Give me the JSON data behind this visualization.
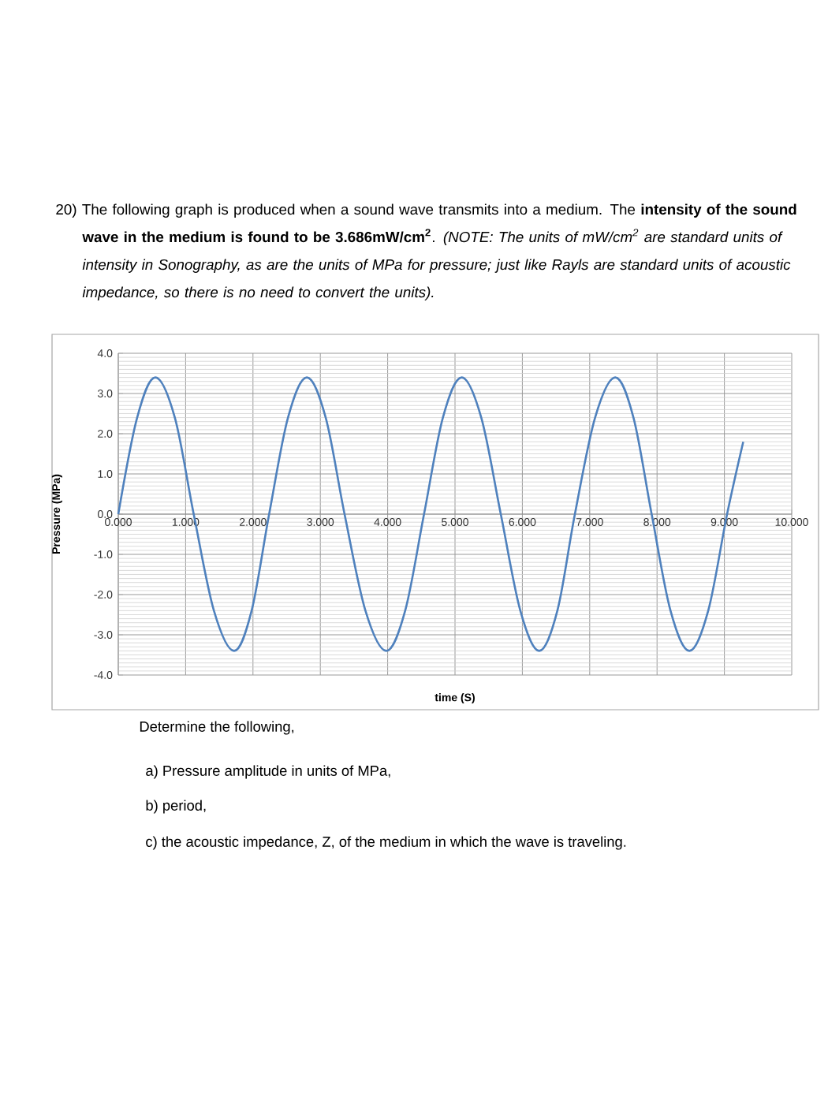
{
  "chart_data": {
    "type": "line",
    "title": "20) The following graph is produced when a sound wave transmits into a medium. The **intensity of the sound wave in the medium is found to be 3.686mW/cm$^{2}$**. *(NOTE: The units of mW/cm$^{2}$ are standard units of intensity in Sonography, as are the units of MPa for pressure; just like Rayls are standard units of acoustic impedance, so there is no need to convert the units).*",
    "xlabel": "time (S)",
    "ylabel": "Pressure (MPa)",
    "annotations": [
      "Determine the following,",
      "a) Pressure amplitude in units of MPa,",
      "b) period,",
      "c) the acoustic impedance, Z, of the medium in which the wave is traveling."
    ],
    "x": [
      0,
      0.28,
      0.55,
      0.84,
      1.12,
      1.42,
      1.72,
      1.98,
      2.24,
      2.52,
      2.8,
      3.08,
      3.36,
      3.67,
      3.98,
      4.26,
      4.54,
      4.82,
      5.1,
      5.39,
      5.68,
      5.97,
      6.25,
      6.52,
      6.78,
      7.08,
      7.38,
      7.65,
      7.92,
      8.2,
      8.48,
      8.76,
      9.04,
      9.28
    ],
    "series": [
      {
        "color": "#4f81bd",
        "values": [
          0,
          2.4,
          3.4,
          2.4,
          0,
          -2.4,
          -3.4,
          -2.4,
          0,
          2.4,
          3.4,
          2.4,
          0,
          -2.4,
          -3.4,
          -2.4,
          0,
          2.4,
          3.4,
          2.4,
          0,
          -2.4,
          -3.4,
          -2.4,
          0,
          2.4,
          3.4,
          2.4,
          0,
          -2.4,
          -3.4,
          -2.4,
          0,
          1.8
        ]
      }
    ],
    "xlim": [
      0,
      10
    ],
    "ylim": [
      -4,
      4
    ],
    "xticks": [
      {
        "value": 0,
        "label": "0.000"
      },
      {
        "value": 1,
        "label": "1.000"
      },
      {
        "value": 2,
        "label": "2.000"
      },
      {
        "value": 3,
        "label": "3.000"
      },
      {
        "value": 4,
        "label": "4.000"
      },
      {
        "value": 5,
        "label": "5.000"
      },
      {
        "value": 6,
        "label": "6.000"
      },
      {
        "value": 7,
        "label": "7.000"
      },
      {
        "value": 8,
        "label": "8.000"
      },
      {
        "value": 9,
        "label": "9.000"
      },
      {
        "value": 10,
        "label": "10.000"
      }
    ],
    "yticks": [
      {
        "value": -4,
        "label": "-4.0"
      },
      {
        "value": -3,
        "label": "-3.0"
      },
      {
        "value": -2,
        "label": "-2.0"
      },
      {
        "value": -1,
        "label": "-1.0"
      },
      {
        "value": 0,
        "label": "0.0"
      },
      {
        "value": 1,
        "label": "1.0"
      },
      {
        "value": 2,
        "label": "2.0"
      },
      {
        "value": 3,
        "label": "3.0"
      },
      {
        "value": 4,
        "label": "4.0"
      }
    ],
    "grid": true,
    "line_style": "solid"
  }
}
